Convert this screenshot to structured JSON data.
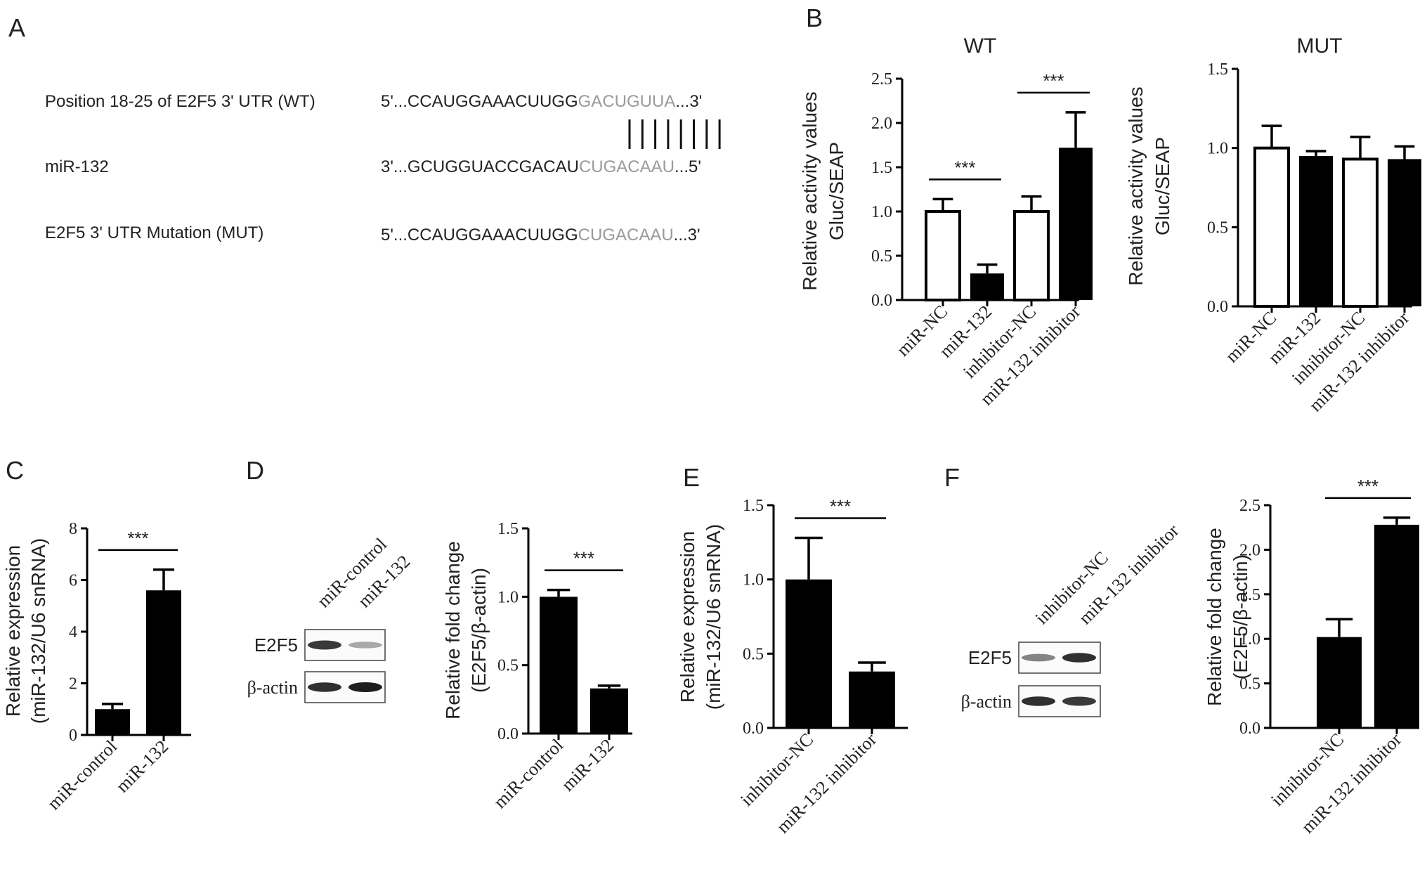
{
  "panel_labels": {
    "A": "A",
    "B": "B",
    "C": "C",
    "D": "D",
    "E": "E",
    "F": "F"
  },
  "sequence_panel": {
    "rows": [
      {
        "label": "Position 18-25 of E2F5 3' UTR (WT)",
        "prefix": "5'...CCAUGGAAACUUGG",
        "highlight": "GACUGUUA",
        "suffix": "...3'"
      },
      {
        "label": "miR-132",
        "prefix": "3'...GCUGGUACCGACAU",
        "highlight": "CUGACAAU",
        "suffix": "...5'"
      },
      {
        "label": "E2F5 3' UTR Mutation (MUT)",
        "prefix": "5'...CCAUGGAAACUUGG",
        "highlight": "CUGACAAU",
        "suffix": "...3'"
      }
    ],
    "pairing_lines": 8
  },
  "western_blots": {
    "D": {
      "lanes": [
        "miR-control",
        "miR-132"
      ],
      "rows": [
        "E2F5",
        "β-actin"
      ],
      "intensities": [
        [
          0.85,
          0.25
        ],
        [
          0.9,
          1.0
        ]
      ]
    },
    "F": {
      "lanes": [
        "inhibitor-NC",
        "miR-132 inhibitor"
      ],
      "rows": [
        "E2F5",
        "β-actin"
      ],
      "intensities": [
        [
          0.45,
          0.9
        ],
        [
          0.9,
          0.85
        ]
      ]
    }
  },
  "colors": {
    "filled_bar": "#000000",
    "open_bar": "#ffffff",
    "highlight_sequence": "#9a9a9a"
  },
  "chart_data": [
    {
      "id": "B-WT",
      "type": "bar",
      "title": "WT",
      "ylabel": "Relative activity values Gluc/SEAP",
      "ylabel_lines": [
        "Relative activity values",
        "Gluc/SEAP"
      ],
      "ylim": [
        0,
        2.5
      ],
      "yticks": [
        "0.0",
        "0.5",
        "1.0",
        "1.5",
        "2.0",
        "2.5"
      ],
      "categories": [
        "miR-NC",
        "miR-132",
        "inhibitor-NC",
        "miR-132 inhibitor"
      ],
      "values": [
        1.0,
        0.3,
        1.0,
        1.72
      ],
      "errors": [
        0.14,
        0.1,
        0.17,
        0.4
      ],
      "fills": [
        "open",
        "filled",
        "open",
        "filled"
      ],
      "significance": [
        {
          "pair": [
            0,
            1
          ],
          "label": "***"
        },
        {
          "pair": [
            2,
            3
          ],
          "label": "***"
        }
      ]
    },
    {
      "id": "B-MUT",
      "type": "bar",
      "title": "MUT",
      "ylabel": "Relative activity values Gluc/SEAP",
      "ylabel_lines": [
        "Relative activity values",
        "Gluc/SEAP"
      ],
      "ylim": [
        0,
        1.5
      ],
      "yticks": [
        "0.0",
        "0.5",
        "1.0",
        "1.5"
      ],
      "categories": [
        "miR-NC",
        "miR-132",
        "inhibitor-NC",
        "miR-132 inhibitor"
      ],
      "values": [
        1.0,
        0.95,
        0.93,
        0.93
      ],
      "errors": [
        0.14,
        0.03,
        0.14,
        0.08
      ],
      "fills": [
        "open",
        "filled",
        "open",
        "filled"
      ],
      "significance": []
    },
    {
      "id": "C",
      "type": "bar",
      "title": "",
      "ylabel": "Relative expression (miR-132/U6 snRNA)",
      "ylabel_lines": [
        "Relative expression",
        "(miR-132/U6 snRNA)"
      ],
      "ylim": [
        0,
        8
      ],
      "yticks": [
        "0",
        "2",
        "4",
        "6",
        "8"
      ],
      "categories": [
        "miR-control",
        "miR-132"
      ],
      "values": [
        1.0,
        5.6
      ],
      "errors": [
        0.2,
        0.8
      ],
      "fills": [
        "filled",
        "filled"
      ],
      "significance": [
        {
          "pair": [
            0,
            1
          ],
          "label": "***"
        }
      ]
    },
    {
      "id": "D",
      "type": "bar",
      "title": "",
      "ylabel": "Relative fold change (E2F5/β-actin)",
      "ylabel_lines": [
        "Relative fold change",
        "(E2F5/β-actin)"
      ],
      "ylim": [
        0,
        1.5
      ],
      "yticks": [
        "0.0",
        "0.5",
        "1.0",
        "1.5"
      ],
      "categories": [
        "miR-control",
        "miR-132"
      ],
      "values": [
        1.0,
        0.33
      ],
      "errors": [
        0.05,
        0.02
      ],
      "fills": [
        "filled",
        "filled"
      ],
      "significance": [
        {
          "pair": [
            0,
            1
          ],
          "label": "***"
        }
      ]
    },
    {
      "id": "E",
      "type": "bar",
      "title": "",
      "ylabel": "Relative expression (miR-132/U6 snRNA)",
      "ylabel_lines": [
        "Relative expression",
        "(miR-132/U6 snRNA)"
      ],
      "ylim": [
        0,
        1.5
      ],
      "yticks": [
        "0.0",
        "0.5",
        "1.0",
        "1.5"
      ],
      "categories": [
        "inhibitor-NC",
        "miR-132 inhibitor"
      ],
      "values": [
        1.0,
        0.38
      ],
      "errors": [
        0.28,
        0.06
      ],
      "fills": [
        "filled",
        "filled"
      ],
      "significance": [
        {
          "pair": [
            0,
            1
          ],
          "label": "***"
        }
      ]
    },
    {
      "id": "F",
      "type": "bar",
      "title": "",
      "ylabel": "Relative fold change (E2F5/β-actin)",
      "ylabel_lines": [
        "Relative fold change",
        "(E2F5/β-actin)"
      ],
      "ylim": [
        0,
        2.5
      ],
      "yticks": [
        "0.0",
        "0.5",
        "1.0",
        "1.5",
        "2.0",
        "2.5"
      ],
      "categories": [
        "inhibitor-NC",
        "miR-132 inhibitor"
      ],
      "values": [
        1.02,
        2.28
      ],
      "errors": [
        0.2,
        0.08
      ],
      "fills": [
        "filled",
        "filled"
      ],
      "significance": [
        {
          "pair": [
            0,
            1
          ],
          "label": "***"
        }
      ]
    }
  ]
}
